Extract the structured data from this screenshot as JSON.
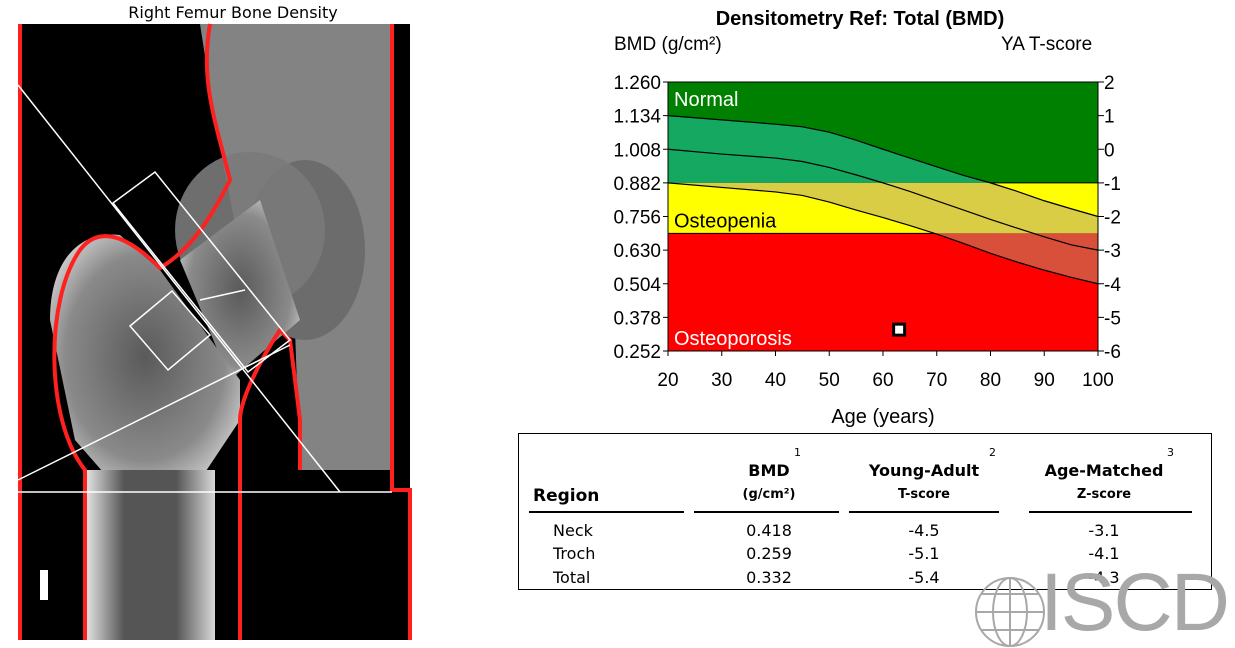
{
  "scan": {
    "title": "Right Femur Bone Density"
  },
  "chart_data": {
    "type": "line",
    "title": "Densitometry Ref: Total (BMD)",
    "ylabel_left": "BMD (g/cm²)",
    "ylabel_right": "YA T-score",
    "xlabel": "Age (years)",
    "x_ticks": [
      20,
      30,
      40,
      50,
      60,
      70,
      80,
      90,
      100
    ],
    "y_ticks_left": [
      "1.260",
      "1.134",
      "1.008",
      "0.882",
      "0.756",
      "0.630",
      "0.504",
      "0.378",
      "0.252"
    ],
    "y_ticks_right": [
      "2",
      "1",
      "0",
      "-1",
      "-2",
      "-3",
      "-4",
      "-5",
      "-6"
    ],
    "xlim": [
      20,
      100
    ],
    "ylim": [
      0.252,
      1.26
    ],
    "zones": [
      {
        "name": "Normal",
        "from": 0.882,
        "to": 1.26,
        "color": "#008000",
        "band_color": "#15a860"
      },
      {
        "name": "Osteopenia",
        "from": 0.693,
        "to": 0.882,
        "color": "#ffff00",
        "band_color": "#d9cd46"
      },
      {
        "name": "Osteoporosis",
        "from": 0.252,
        "to": 0.693,
        "color": "#ff0000",
        "band_color": "#d9503a"
      }
    ],
    "series": [
      {
        "x": [
          20,
          30,
          40,
          45,
          50,
          55,
          60,
          65,
          70,
          75,
          80,
          85,
          90,
          95,
          100
        ],
        "values": [
          1.134,
          1.118,
          1.102,
          1.092,
          1.072,
          1.042,
          1.008,
          0.975,
          0.942,
          0.91,
          0.882,
          0.85,
          0.815,
          0.785,
          0.756
        ]
      },
      {
        "x": [
          20,
          30,
          40,
          45,
          50,
          55,
          60,
          65,
          70,
          75,
          80,
          85,
          90,
          95,
          100
        ],
        "values": [
          1.008,
          0.99,
          0.975,
          0.962,
          0.94,
          0.912,
          0.882,
          0.85,
          0.815,
          0.78,
          0.745,
          0.712,
          0.68,
          0.65,
          0.63
        ]
      },
      {
        "x": [
          20,
          30,
          40,
          45,
          50,
          55,
          60,
          65,
          70,
          75,
          80,
          85,
          90,
          95,
          100
        ],
        "values": [
          0.882,
          0.865,
          0.848,
          0.835,
          0.81,
          0.78,
          0.752,
          0.722,
          0.69,
          0.655,
          0.618,
          0.585,
          0.555,
          0.528,
          0.504
        ]
      }
    ],
    "patient_point": {
      "x": 63,
      "y": 0.332
    }
  },
  "table": {
    "headers": [
      {
        "label": "Region",
        "unit": "",
        "note": ""
      },
      {
        "label": "BMD",
        "unit": "(g/cm²)",
        "note": "1"
      },
      {
        "label": "Young-Adult",
        "unit": "T-score",
        "note": "2"
      },
      {
        "label": "Age-Matched",
        "unit": "Z-score",
        "note": "3"
      }
    ],
    "rows": [
      {
        "region": "Neck",
        "bmd": "0.418",
        "t": "-4.5",
        "z": "-3.1"
      },
      {
        "region": "Troch",
        "bmd": "0.259",
        "t": "-5.1",
        "z": "-4.1"
      },
      {
        "region": "Total",
        "bmd": "0.332",
        "t": "-5.4",
        "z": "-4.3"
      }
    ]
  },
  "logo": {
    "text": "ISCD"
  }
}
